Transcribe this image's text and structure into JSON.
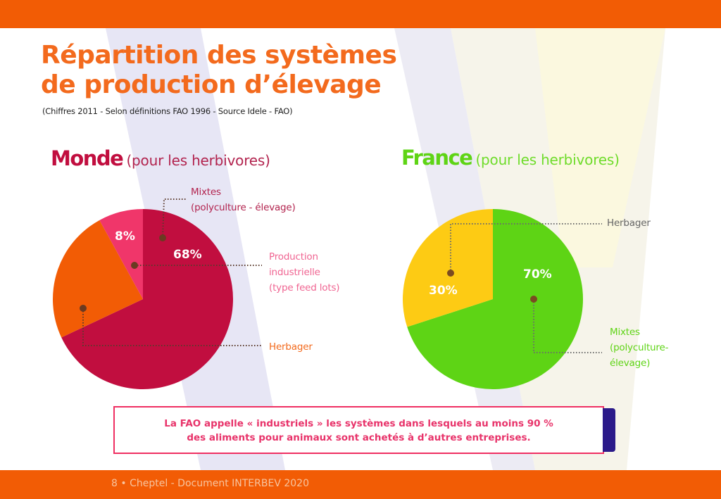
{
  "title_line1": "Répartition des systèmes",
  "title_line2": "de production d’élevage",
  "subtitle": "(Chiffres 2011 - Selon définitions FAO 1996 - Source Idele - FAO)",
  "footer": "8 • Cheptel - Document INTERBEV 2020",
  "callout": {
    "line1": "La FAO appelle « industriels » les systèmes dans lesquels au moins 90 %",
    "line2": "des aliments pour animaux sont achetés à d’autres entreprises."
  },
  "colors": {
    "brand_orange": "#f25c05",
    "monde_mixtes": "#c10e3f",
    "monde_industrielle": "#f0366a",
    "monde_herbager": "#f25c05",
    "france_mixtes": "#5ed415",
    "france_herbager": "#fdcb14"
  },
  "chart_data": [
    {
      "type": "pie",
      "title": "Monde",
      "subtitle": "(pour les herbivores)",
      "slices": [
        {
          "label": "Mixtes",
          "label_line2": "(polyculture - élevage)",
          "value": 68,
          "value_label": "68%",
          "color": "#c10e3f"
        },
        {
          "label": "Herbager",
          "value": 24,
          "value_label": "",
          "color": "#f25c05"
        },
        {
          "label": "Production",
          "label_line2": "industrielle",
          "label_line3": "(type feed lots)",
          "value": 8,
          "value_label": "8%",
          "color": "#f0366a"
        }
      ]
    },
    {
      "type": "pie",
      "title": "France",
      "subtitle": "(pour les herbivores)",
      "slices": [
        {
          "label": "Mixtes",
          "label_line2": "(polyculture-",
          "label_line3": "élevage)",
          "value": 70,
          "value_label": "70%",
          "color": "#5ed415"
        },
        {
          "label": "Herbager",
          "value": 30,
          "value_label": "30%",
          "color": "#fdcb14"
        }
      ]
    }
  ]
}
